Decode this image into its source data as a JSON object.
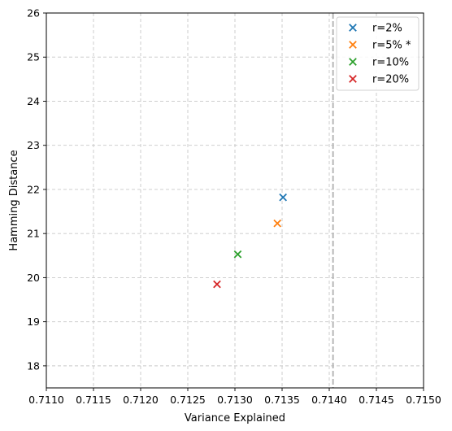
{
  "chart_data": {
    "type": "scatter",
    "xlabel": "Variance Explained",
    "ylabel": "Hamming Distance",
    "xlim": [
      0.711,
      0.715
    ],
    "ylim": [
      17.5,
      26
    ],
    "x_ticks": [
      "0.7110",
      "0.7115",
      "0.7120",
      "0.7125",
      "0.7130",
      "0.7135",
      "0.7140",
      "0.7145",
      "0.7150"
    ],
    "y_ticks": [
      "18",
      "19",
      "20",
      "21",
      "22",
      "23",
      "24",
      "25",
      "26"
    ],
    "grid": true,
    "legend_position": "top-right",
    "marker": "x",
    "reference_line": {
      "orientation": "vertical",
      "x": 0.71404,
      "style": "dashed",
      "color": "#b0b0b0"
    },
    "series": [
      {
        "name": "r=2%",
        "color": "#1f77b4",
        "points": [
          {
            "x": 0.71351,
            "y": 21.82
          }
        ]
      },
      {
        "name": "r=5% *",
        "color": "#ff7f0e",
        "points": [
          {
            "x": 0.71345,
            "y": 21.23
          }
        ]
      },
      {
        "name": "r=10%",
        "color": "#2ca02c",
        "points": [
          {
            "x": 0.71303,
            "y": 20.53
          }
        ]
      },
      {
        "name": "r=20%",
        "color": "#d62728",
        "points": [
          {
            "x": 0.71281,
            "y": 19.85
          }
        ]
      }
    ]
  }
}
